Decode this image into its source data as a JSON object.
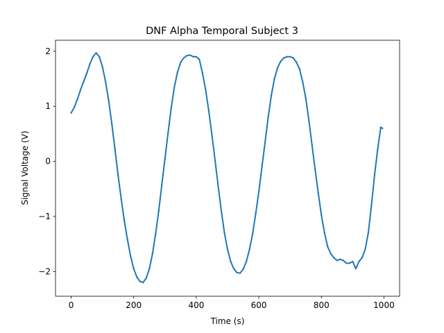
{
  "chart_data": {
    "type": "line",
    "title": "DNF Alpha Temporal Subject 3",
    "xlabel": "Time (s)",
    "ylabel": "Signal Voltage (V)",
    "xlim": [
      -50,
      1050
    ],
    "ylim": [
      -2.45,
      2.2
    ],
    "xticks": [
      0,
      200,
      400,
      600,
      800,
      1000
    ],
    "yticks": [
      -2,
      -1,
      0,
      1,
      2
    ],
    "xtick_labels": [
      "0",
      "200",
      "400",
      "600",
      "800",
      "1000"
    ],
    "ytick_labels": [
      "−2",
      "−1",
      "0",
      "1",
      "2"
    ],
    "grid": false,
    "legend": "none",
    "series": [
      {
        "color": "#1f77b4",
        "x": [
          0,
          10,
          20,
          30,
          40,
          50,
          60,
          70,
          80,
          90,
          100,
          110,
          120,
          130,
          140,
          150,
          160,
          170,
          180,
          190,
          200,
          210,
          220,
          230,
          240,
          250,
          260,
          270,
          280,
          290,
          300,
          310,
          320,
          330,
          340,
          350,
          360,
          370,
          380,
          390,
          400,
          410,
          420,
          430,
          440,
          450,
          460,
          470,
          480,
          490,
          500,
          510,
          520,
          530,
          540,
          550,
          560,
          570,
          580,
          590,
          600,
          610,
          620,
          630,
          640,
          650,
          660,
          670,
          680,
          690,
          700,
          710,
          720,
          730,
          740,
          750,
          760,
          770,
          780,
          790,
          800,
          810,
          820,
          830,
          840,
          850,
          860,
          870,
          880,
          890,
          900,
          910,
          920,
          930,
          940,
          950,
          960,
          970,
          980,
          990,
          995
        ],
        "y": [
          0.88,
          0.98,
          1.13,
          1.3,
          1.45,
          1.6,
          1.77,
          1.9,
          1.97,
          1.9,
          1.72,
          1.45,
          1.1,
          0.68,
          0.22,
          -0.25,
          -0.68,
          -1.08,
          -1.42,
          -1.72,
          -1.95,
          -2.1,
          -2.18,
          -2.2,
          -2.12,
          -1.95,
          -1.68,
          -1.32,
          -0.9,
          -0.42,
          0.05,
          0.52,
          0.97,
          1.35,
          1.62,
          1.8,
          1.88,
          1.92,
          1.93,
          1.9,
          1.9,
          1.85,
          1.6,
          1.3,
          0.92,
          0.48,
          0.02,
          -0.45,
          -0.9,
          -1.3,
          -1.6,
          -1.82,
          -1.95,
          -2.02,
          -2.03,
          -1.96,
          -1.82,
          -1.6,
          -1.32,
          -0.95,
          -0.55,
          -0.1,
          0.35,
          0.8,
          1.2,
          1.5,
          1.7,
          1.82,
          1.88,
          1.9,
          1.9,
          1.88,
          1.8,
          1.68,
          1.45,
          1.15,
          0.75,
          0.3,
          -0.15,
          -0.58,
          -0.98,
          -1.3,
          -1.55,
          -1.68,
          -1.75,
          -1.8,
          -1.78,
          -1.8,
          -1.85,
          -1.85,
          -1.82,
          -1.95,
          -1.82,
          -1.75,
          -1.6,
          -1.3,
          -0.8,
          -0.25,
          0.22,
          0.62,
          0.6
        ]
      }
    ]
  }
}
